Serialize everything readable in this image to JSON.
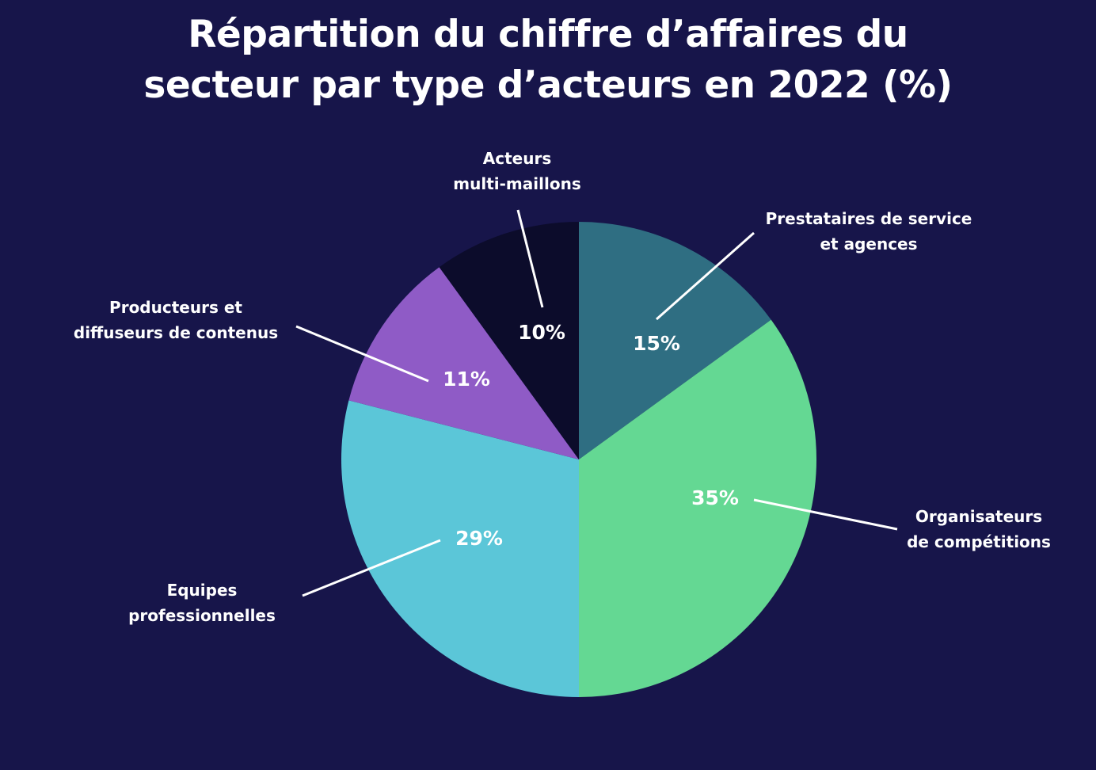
{
  "chart_data": {
    "type": "pie",
    "title": "Répartition du chiffre d’affaires du secteur par type d’acteurs en 2022 (%)",
    "title_lines": [
      "Répartition du chiffre d’affaires du",
      "secteur par type d’acteurs en 2022 (%)"
    ],
    "categories": [
      "Prestataires de service et agences",
      "Organisateurs de compétitions",
      "Equipes professionnelles",
      "Producteurs et diffuseurs de contenus",
      "Acteurs multi-maillons"
    ],
    "label_lines": [
      [
        "Prestataires de service",
        "et agences"
      ],
      [
        "Organisateurs",
        "de compétitions"
      ],
      [
        "Equipes",
        "professionnelles"
      ],
      [
        "Producteurs et",
        "diffuseurs de contenus"
      ],
      [
        "Acteurs",
        "multi-maillons"
      ]
    ],
    "values": [
      15,
      35,
      29,
      11,
      10
    ],
    "value_labels": [
      "15%",
      "35%",
      "29%",
      "11%",
      "10%"
    ],
    "colors": [
      "#2F6E82",
      "#64D893",
      "#5BC6D8",
      "#8F5BC6",
      "#0C0C2B"
    ],
    "start": "12 o'clock",
    "direction": "clockwise",
    "legend": "none",
    "background": "#17154A",
    "text_color": "#FFFFFF"
  }
}
